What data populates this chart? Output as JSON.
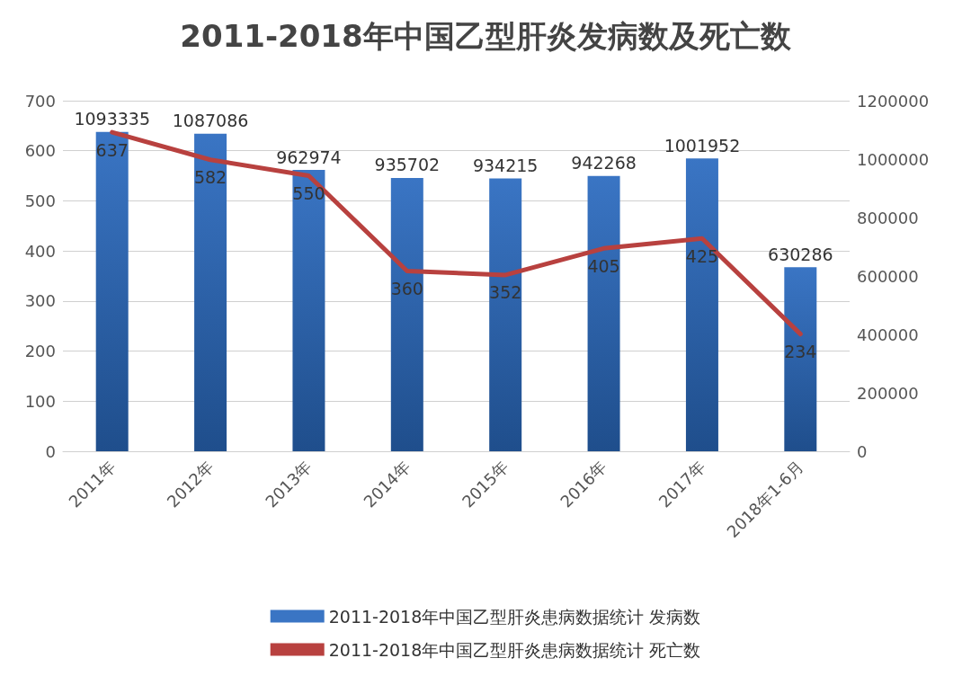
{
  "chart_data": {
    "type": "bar",
    "title": "2011-2018年中国乙型肝炎发病数及死亡数",
    "categories": [
      "2011年",
      "2012年",
      "2013年",
      "2014年",
      "2015年",
      "2016年",
      "2017年",
      "2018年1-6月"
    ],
    "series": [
      {
        "name": "2011-2018年中国乙型肝炎患病数据统计 发病数",
        "axis": "y2",
        "color": "#3a75c4",
        "values": [
          1093335,
          1087086,
          962974,
          935702,
          934215,
          942268,
          1001952,
          630286
        ]
      },
      {
        "name": "2011-2018年中国乙型肝炎患病数据统计 死亡数",
        "type": "line",
        "color": "#b8413f",
        "values": [
          637,
          582,
          550,
          360,
          352,
          405,
          425,
          234
        ]
      }
    ],
    "ylim": [
      0,
      700
    ],
    "yticks": [
      0,
      100,
      200,
      300,
      400,
      500,
      600,
      700
    ],
    "y2lim": [
      0,
      1200000
    ],
    "y2ticks": [
      0,
      200000,
      400000,
      600000,
      800000,
      1000000,
      1200000
    ],
    "grid": "y",
    "legend": "bottom",
    "data_labels": true,
    "marker": "none"
  }
}
